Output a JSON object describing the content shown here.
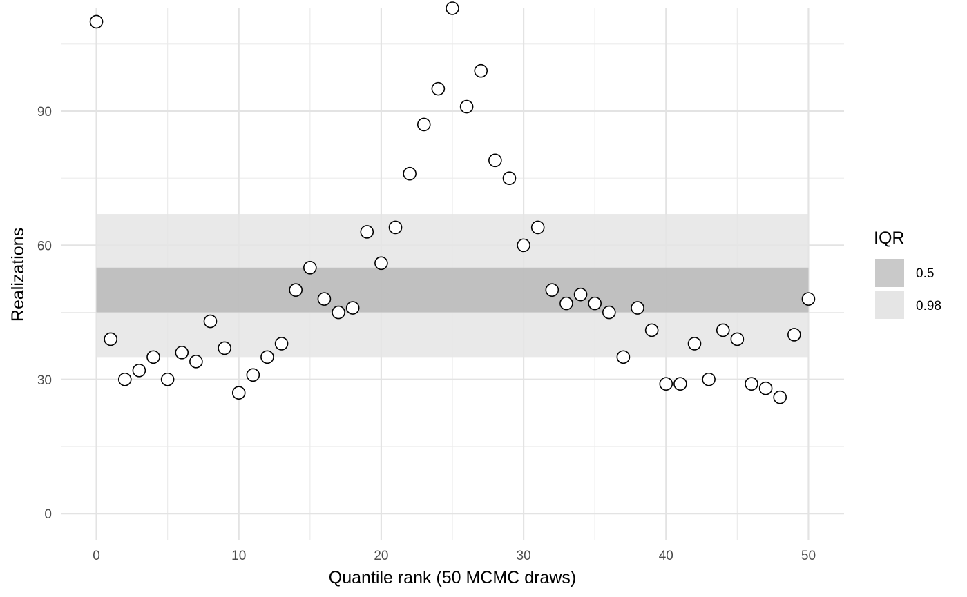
{
  "chart_data": {
    "type": "scatter",
    "title": "",
    "xlabel": "Quantile rank (50 MCMC draws)",
    "ylabel": "Realizations",
    "xlim": [
      -2.5,
      52.5
    ],
    "ylim": [
      -6,
      113
    ],
    "x_ticks": [
      0,
      10,
      20,
      30,
      40,
      50
    ],
    "y_ticks": [
      0,
      30,
      60,
      90
    ],
    "grid": true,
    "legend": {
      "title": "IQR",
      "position": "right",
      "items": [
        {
          "label": "0.5",
          "color": "#bdbdbd"
        },
        {
          "label": "0.98",
          "color": "#e5e5e5"
        }
      ]
    },
    "bands": [
      {
        "name": "0.98",
        "x": [
          0,
          50
        ],
        "y": [
          35,
          67
        ],
        "color": "#e5e5e5"
      },
      {
        "name": "0.5",
        "x": [
          0,
          50
        ],
        "y": [
          45,
          55
        ],
        "color": "#b8b8b8"
      }
    ],
    "points": {
      "x": [
        0,
        1,
        2,
        3,
        4,
        5,
        6,
        7,
        8,
        9,
        10,
        11,
        12,
        13,
        14,
        15,
        16,
        17,
        18,
        19,
        20,
        21,
        22,
        23,
        24,
        25,
        26,
        27,
        28,
        29,
        30,
        31,
        32,
        33,
        34,
        35,
        36,
        37,
        38,
        39,
        40,
        41,
        42,
        43,
        44,
        45,
        46,
        47,
        48,
        49,
        50
      ],
      "y": [
        110,
        39,
        30,
        32,
        35,
        30,
        36,
        34,
        43,
        37,
        27,
        31,
        35,
        38,
        50,
        55,
        48,
        45,
        46,
        63,
        56,
        64,
        76,
        87,
        95,
        113,
        91,
        99,
        79,
        75,
        60,
        64,
        50,
        47,
        49,
        47,
        45,
        35,
        46,
        41,
        29,
        29,
        38,
        30,
        41,
        39,
        29,
        28,
        26,
        40,
        48
      ]
    }
  }
}
